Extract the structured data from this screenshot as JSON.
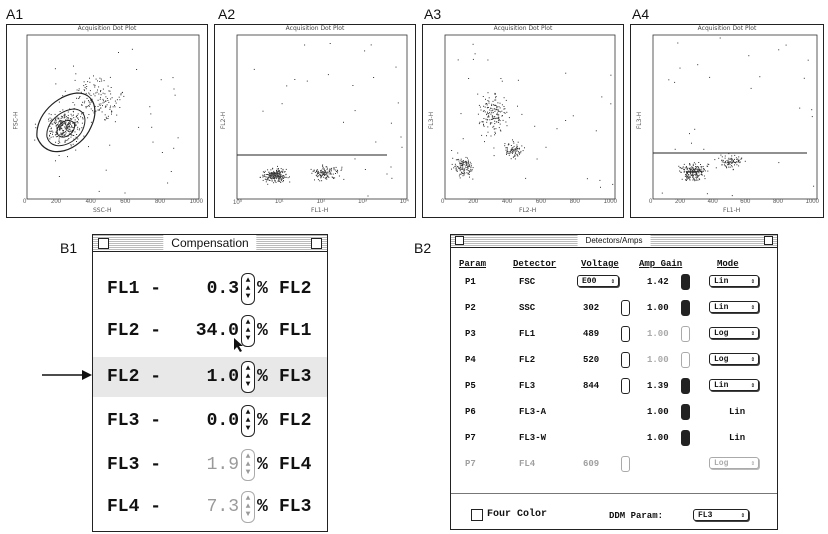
{
  "panels": {
    "a1": "A1",
    "a2": "A2",
    "a3": "A3",
    "a4": "A4",
    "b1": "B1",
    "b2": "B2"
  },
  "plots": [
    {
      "id": "A1",
      "title": "Acquisition Dot Plot",
      "xlabel": "SSC-H",
      "ylabel": "FSC-H",
      "xticks": [
        "0",
        "200",
        "400",
        "600",
        "800",
        "1000"
      ]
    },
    {
      "id": "A2",
      "title": "Acquisition Dot Plot",
      "xlabel": "FL1-H",
      "ylabel": "FL2-H",
      "xticks": [
        "10⁰",
        "10¹",
        "10²",
        "10³",
        "10⁴"
      ]
    },
    {
      "id": "A3",
      "title": "Acquisition Dot Plot",
      "xlabel": "FL2-H",
      "ylabel": "FL3-H",
      "xticks": [
        "0",
        "200",
        "400",
        "600",
        "800",
        "1000"
      ]
    },
    {
      "id": "A4",
      "title": "Acquisition Dot Plot",
      "xlabel": "FL1-H",
      "ylabel": "FL3-H",
      "xticks": [
        "0",
        "200",
        "400",
        "600",
        "800",
        "1000"
      ]
    }
  ],
  "compensation": {
    "title": "Compensation",
    "rows": [
      {
        "left": "FL1 -",
        "value": "0.3",
        "pct": "%",
        "right": "FL2",
        "enabled": true
      },
      {
        "left": "FL2 -",
        "value": "34.0",
        "pct": "%",
        "right": "FL1",
        "enabled": true
      },
      {
        "left": "FL2 -",
        "value": "1.0",
        "pct": "%",
        "right": "FL3",
        "enabled": true
      },
      {
        "left": "FL3 -",
        "value": "0.0",
        "pct": "%",
        "right": "FL2",
        "enabled": true
      },
      {
        "left": "FL3 -",
        "value": "1.9",
        "pct": "%",
        "right": "FL4",
        "enabled": false
      },
      {
        "left": "FL4 -",
        "value": "7.3",
        "pct": "%",
        "right": "FL3",
        "enabled": false
      }
    ]
  },
  "detectors": {
    "title": "Detectors/Amps",
    "headers": {
      "param": "Param",
      "detector": "Detector",
      "voltage": "Voltage",
      "gain": "Amp Gain",
      "mode": "Mode"
    },
    "rows": [
      {
        "param": "P1",
        "detector": "FSC",
        "voltage": "E00",
        "gain": "1.42",
        "mode": "Lin",
        "dim": false
      },
      {
        "param": "P2",
        "detector": "SSC",
        "voltage": "302",
        "gain": "1.00",
        "mode": "Lin",
        "dim": false
      },
      {
        "param": "P3",
        "detector": "FL1",
        "voltage": "489",
        "gain": "1.00",
        "mode": "Log",
        "dim": false
      },
      {
        "param": "P4",
        "detector": "FL2",
        "voltage": "520",
        "gain": "1.00",
        "mode": "Log",
        "dim": false
      },
      {
        "param": "P5",
        "detector": "FL3",
        "voltage": "844",
        "gain": "1.39",
        "mode": "Lin",
        "dim": false
      },
      {
        "param": "P6",
        "detector": "FL3-A",
        "voltage": "",
        "gain": "1.00",
        "mode": "Lin",
        "dim": false
      },
      {
        "param": "P7",
        "detector": "FL3-W",
        "voltage": "",
        "gain": "1.00",
        "mode": "Lin",
        "dim": false
      },
      {
        "param": "P7",
        "detector": "FL4",
        "voltage": "609",
        "gain": "",
        "mode": "Log",
        "dim": true
      }
    ],
    "four_color": "Four Color",
    "ddm_label": "DDM Param:",
    "ddm_value": "FL3"
  }
}
